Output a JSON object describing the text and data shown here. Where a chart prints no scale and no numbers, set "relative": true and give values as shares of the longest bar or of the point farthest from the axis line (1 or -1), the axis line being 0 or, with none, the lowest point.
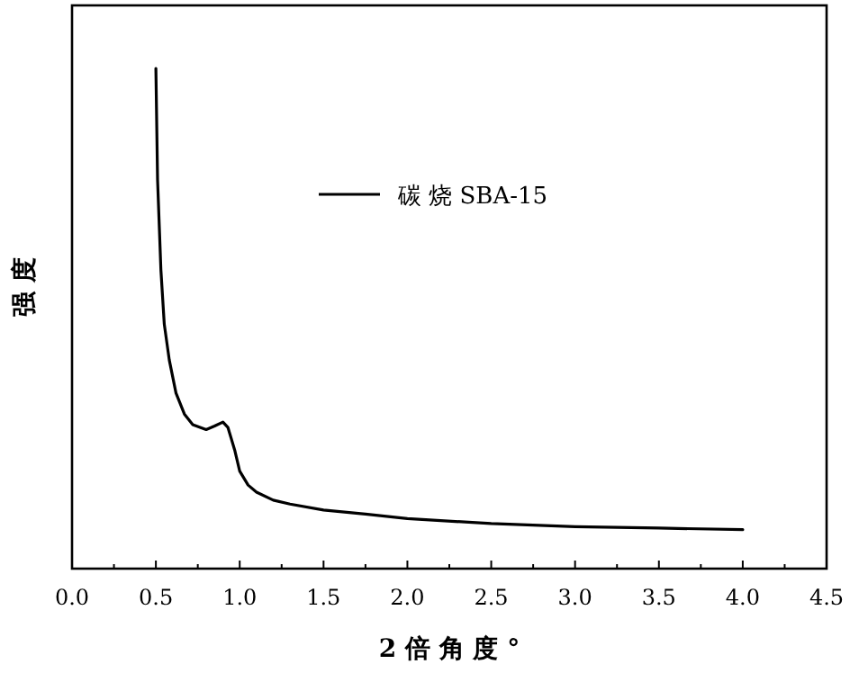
{
  "chart_data": {
    "type": "line",
    "relative": true,
    "xlabel": "2 倍 角 度 °",
    "ylabel": "强 度",
    "xlim": [
      0,
      4.5
    ],
    "xticks": [
      {
        "value": 0,
        "label": "0.0"
      },
      {
        "value": 0.25,
        "label": null
      },
      {
        "value": 0.5,
        "label": "0.5"
      },
      {
        "value": 0.75,
        "label": null
      },
      {
        "value": 1,
        "label": "1.0"
      },
      {
        "value": 1.25,
        "label": null
      },
      {
        "value": 1.5,
        "label": "1.5"
      },
      {
        "value": 1.75,
        "label": null
      },
      {
        "value": 2,
        "label": "2.0"
      },
      {
        "value": 2.25,
        "label": null
      },
      {
        "value": 2.5,
        "label": "2.5"
      },
      {
        "value": 2.75,
        "label": null
      },
      {
        "value": 3,
        "label": "3.0"
      },
      {
        "value": 3.25,
        "label": null
      },
      {
        "value": 3.5,
        "label": "3.5"
      },
      {
        "value": 3.75,
        "label": null
      },
      {
        "value": 4,
        "label": "4.0"
      },
      {
        "value": 4.25,
        "label": null
      },
      {
        "value": 4.5,
        "label": "4.5"
      }
    ],
    "legend": "top",
    "series": [
      {
        "name": "碳 烧 SBA-15",
        "color": "#000000",
        "x": [
          0.5,
          0.51,
          0.53,
          0.55,
          0.58,
          0.62,
          0.67,
          0.72,
          0.8,
          0.85,
          0.9,
          0.93,
          0.97,
          1.0,
          1.05,
          1.1,
          1.2,
          1.3,
          1.5,
          1.75,
          2.0,
          2.5,
          3.0,
          3.5,
          4.0
        ],
        "values": [
          1.0,
          0.778,
          0.597,
          0.489,
          0.417,
          0.351,
          0.309,
          0.288,
          0.278,
          0.285,
          0.293,
          0.282,
          0.237,
          0.195,
          0.167,
          0.153,
          0.137,
          0.129,
          0.117,
          0.109,
          0.1,
          0.09,
          0.084,
          0.081,
          0.078
        ]
      }
    ]
  }
}
